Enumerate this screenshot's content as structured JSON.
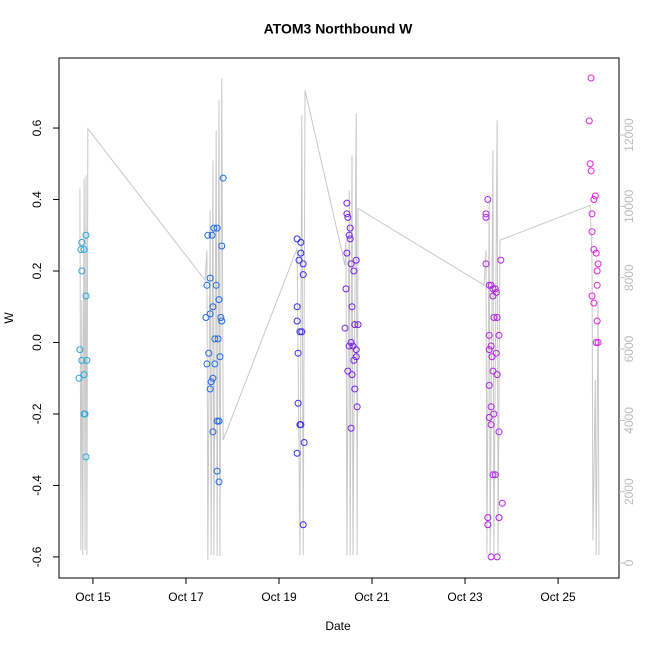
{
  "chart_data": {
    "type": "scatter",
    "title": "ATOM3 Northbound W",
    "xlabel": "Date",
    "ylabel": "W",
    "xlim": [
      14.27,
      26.31
    ],
    "xticks": [
      {
        "value": 15,
        "label": "Oct 15"
      },
      {
        "value": 17,
        "label": "Oct 17"
      },
      {
        "value": 19,
        "label": "Oct 19"
      },
      {
        "value": 21,
        "label": "Oct 21"
      },
      {
        "value": 23,
        "label": "Oct 23"
      },
      {
        "value": 25,
        "label": "Oct 25"
      }
    ],
    "ylim": [
      -0.659,
      0.796
    ],
    "yticks": [
      -0.6,
      -0.4,
      -0.2,
      {
        "value": 0,
        "label": "0.0"
      },
      0.2,
      0.4,
      0.6
    ],
    "y2lim": [
      -420,
      14160
    ],
    "y2ticks": [
      0,
      2000,
      4000,
      6000,
      8000,
      10000,
      12000
    ],
    "y2color": "#bbbbbb",
    "series": [
      {
        "type": "line",
        "axis": "y2",
        "color": "#c8c8c8",
        "x": [
          14.72,
          14.74,
          14.76,
          14.78,
          14.81,
          14.83,
          14.85,
          14.87,
          14.89,
          17.41,
          17.45,
          17.47,
          17.52,
          17.54,
          17.58,
          17.6,
          17.65,
          17.67,
          17.71,
          17.73,
          17.77,
          17.8,
          19.39,
          19.45,
          19.49,
          19.52,
          19.56,
          20.42,
          20.44,
          20.46,
          20.51,
          20.53,
          20.57,
          20.59,
          20.66,
          20.68,
          20.7,
          23.41,
          23.45,
          23.47,
          23.52,
          23.54,
          23.6,
          23.62,
          23.69,
          23.71,
          23.75,
          25.69,
          25.73,
          25.75,
          25.8,
          25.82,
          25.86,
          25.88
        ],
        "values": [
          10500,
          360,
          7370,
          220,
          10780,
          360,
          10870,
          220,
          12180,
          7930,
          8770,
          80,
          9890,
          220,
          11290,
          220,
          12130,
          200,
          12970,
          200,
          13590,
          3450,
          8820,
          220,
          12550,
          220,
          13250,
          8350,
          9050,
          220,
          10450,
          220,
          11430,
          220,
          12600,
          220,
          9940,
          7790,
          8770,
          220,
          10170,
          220,
          11570,
          220,
          12410,
          220,
          9050,
          10030,
          8490,
          630,
          5130,
          220,
          7370,
          220
        ]
      },
      {
        "color": "#2aa8e0",
        "x": [
          14.76,
          14.74,
          14.81,
          14.76,
          14.85,
          14.72,
          14.76,
          14.81,
          14.7,
          14.87,
          14.81,
          14.83,
          14.85,
          14.85
        ],
        "values": [
          0.28,
          0.26,
          0.26,
          0.2,
          0.13,
          -0.02,
          -0.05,
          -0.09,
          -0.1,
          -0.05,
          -0.2,
          -0.2,
          -0.32,
          0.3
        ]
      },
      {
        "color": "#1f6ae6",
        "x": [
          17.8,
          17.47,
          17.56,
          17.6,
          17.67,
          17.77,
          17.52,
          17.45,
          17.65,
          17.71,
          17.58,
          17.52,
          17.43,
          17.75,
          17.77,
          17.69,
          17.62,
          17.73,
          17.49,
          17.45,
          17.62,
          17.58,
          17.54,
          17.52,
          17.58,
          17.71,
          17.67,
          17.67,
          17.71
        ],
        "values": [
          0.46,
          0.3,
          0.3,
          0.32,
          0.32,
          0.27,
          0.18,
          0.16,
          0.16,
          0.12,
          0.1,
          0.08,
          0.07,
          0.07,
          0.06,
          0.01,
          0.01,
          -0.04,
          -0.03,
          -0.06,
          -0.06,
          -0.1,
          -0.11,
          -0.13,
          -0.25,
          -0.22,
          -0.22,
          -0.36,
          -0.39
        ]
      },
      {
        "color": "#3a30e6",
        "x": [
          19.39,
          19.47,
          19.47,
          19.43,
          19.52,
          19.52,
          19.39,
          19.39,
          19.45,
          19.49,
          19.41,
          19.41,
          19.47,
          19.45,
          19.54,
          19.39,
          19.52
        ],
        "values": [
          0.29,
          0.28,
          0.25,
          0.23,
          0.22,
          0.19,
          0.1,
          0.06,
          0.03,
          0.03,
          -0.03,
          -0.17,
          -0.23,
          -0.23,
          -0.28,
          -0.31,
          -0.51
        ]
      },
      {
        "color": "#7a22e6",
        "x": [
          20.46,
          20.46,
          20.48,
          20.53,
          20.51,
          20.53,
          20.46,
          20.66,
          20.55,
          20.61,
          20.44,
          20.57,
          20.63,
          20.7,
          20.42,
          20.55,
          20.51,
          20.59,
          20.66,
          20.66,
          20.61,
          20.48,
          20.57,
          20.63,
          20.68,
          20.55
        ],
        "values": [
          0.39,
          0.36,
          0.35,
          0.32,
          0.3,
          0.29,
          0.25,
          0.23,
          0.22,
          0.2,
          0.15,
          0.1,
          0.05,
          0.05,
          0.04,
          0.0,
          -0.01,
          -0.01,
          -0.02,
          -0.04,
          -0.05,
          -0.08,
          -0.09,
          -0.13,
          -0.18,
          -0.24
        ]
      },
      {
        "color": "#b422e6",
        "x": [
          23.49,
          23.45,
          23.45,
          23.45,
          23.77,
          23.52,
          23.6,
          23.56,
          23.65,
          23.6,
          23.67,
          23.62,
          23.69,
          23.52,
          23.73,
          23.56,
          23.52,
          23.67,
          23.58,
          23.6,
          23.69,
          23.52,
          23.56,
          23.62,
          23.52,
          23.56,
          23.73,
          23.6,
          23.65,
          23.8,
          23.73,
          23.49,
          23.49,
          23.56,
          23.69
        ],
        "values": [
          0.4,
          0.36,
          0.35,
          0.22,
          0.23,
          0.16,
          0.15,
          0.16,
          0.15,
          0.13,
          0.14,
          0.07,
          0.07,
          0.02,
          0.02,
          -0.01,
          -0.02,
          -0.03,
          -0.04,
          -0.08,
          -0.09,
          -0.12,
          -0.18,
          -0.2,
          -0.21,
          -0.23,
          -0.25,
          -0.37,
          -0.37,
          -0.45,
          -0.49,
          -0.49,
          -0.51,
          -0.6,
          -0.6
        ]
      },
      {
        "color": "#e022e0",
        "x": [
          25.71,
          25.67,
          25.69,
          25.71,
          25.8,
          25.77,
          25.73,
          25.73,
          25.77,
          25.82,
          25.86,
          25.84,
          25.84,
          25.73,
          25.77,
          25.84,
          25.86,
          25.82
        ],
        "values": [
          0.74,
          0.62,
          0.5,
          0.48,
          0.41,
          0.4,
          0.36,
          0.31,
          0.26,
          0.25,
          0.22,
          0.2,
          0.16,
          0.13,
          0.11,
          0.06,
          0.0,
          0.0
        ]
      }
    ]
  }
}
